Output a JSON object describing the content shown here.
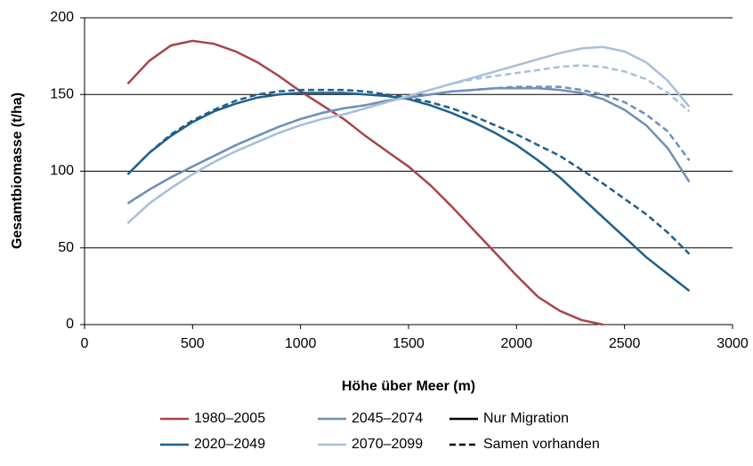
{
  "chart_data": {
    "type": "line",
    "xlabel": "Höhe über Meer (m)",
    "ylabel": "Gesamtbiomasse (t/ha)",
    "x": [
      200,
      300,
      400,
      500,
      600,
      700,
      800,
      900,
      1000,
      1100,
      1200,
      1300,
      1400,
      1500,
      1600,
      1700,
      1800,
      1900,
      2000,
      2100,
      2200,
      2300,
      2400,
      2500,
      2600,
      2700,
      2800
    ],
    "series": [
      {
        "name": "1980–2005",
        "color": "#a84448",
        "values": [
          157,
          172,
          182,
          185,
          183,
          178,
          171,
          162,
          152,
          143,
          134,
          123,
          113,
          103,
          91,
          77,
          62,
          47,
          32,
          18,
          9,
          3,
          0,
          null,
          null,
          null,
          null
        ]
      },
      {
        "name": "2020–2049",
        "color": "#1f5f8b",
        "values": [
          98,
          112,
          123,
          132,
          139,
          144,
          148,
          150,
          151,
          151,
          151,
          150,
          149,
          147,
          143,
          138,
          132,
          125,
          117,
          107,
          96,
          83,
          70,
          57,
          44,
          33,
          22
        ],
        "samen_values": [
          98,
          112,
          124,
          133,
          140,
          146,
          150,
          152,
          153,
          153,
          153,
          152,
          150,
          148,
          145,
          141,
          136,
          130,
          124,
          117,
          110,
          101,
          92,
          82,
          72,
          60,
          46
        ]
      },
      {
        "name": "2045–2074",
        "color": "#6f8fb8",
        "values": [
          79,
          88,
          96,
          103,
          110,
          117,
          123,
          129,
          134,
          138,
          141,
          143,
          146,
          148,
          150,
          152,
          153,
          154,
          154,
          154,
          153,
          151,
          147,
          140,
          130,
          115,
          93
        ],
        "samen_values": [
          79,
          88,
          96,
          103,
          110,
          117,
          123,
          129,
          134,
          138,
          141,
          143,
          146,
          148,
          150,
          152,
          153,
          154,
          155,
          155,
          155,
          153,
          150,
          145,
          137,
          126,
          107
        ]
      },
      {
        "name": "2070–2099",
        "color": "#a9bfd9",
        "values": [
          66,
          79,
          89,
          98,
          106,
          113,
          119,
          125,
          130,
          134,
          137,
          141,
          145,
          149,
          153,
          157,
          161,
          165,
          169,
          173,
          177,
          180,
          181,
          178,
          171,
          159,
          142
        ],
        "samen_values": [
          66,
          79,
          89,
          98,
          106,
          113,
          119,
          125,
          130,
          134,
          137,
          141,
          145,
          149,
          153,
          157,
          160,
          162,
          164,
          166,
          168,
          169,
          168,
          165,
          160,
          151,
          139
        ]
      }
    ],
    "legend_styles": [
      {
        "name": "Nur Migration",
        "dashed": false
      },
      {
        "name": "Samen vorhanden",
        "dashed": true
      }
    ],
    "xlim": [
      0,
      3000
    ],
    "xticks": [
      0,
      500,
      1000,
      1500,
      2000,
      2500,
      3000
    ],
    "ylim": [
      0,
      200
    ],
    "yticks": [
      0,
      50,
      100,
      150,
      200
    ],
    "grid": true
  }
}
